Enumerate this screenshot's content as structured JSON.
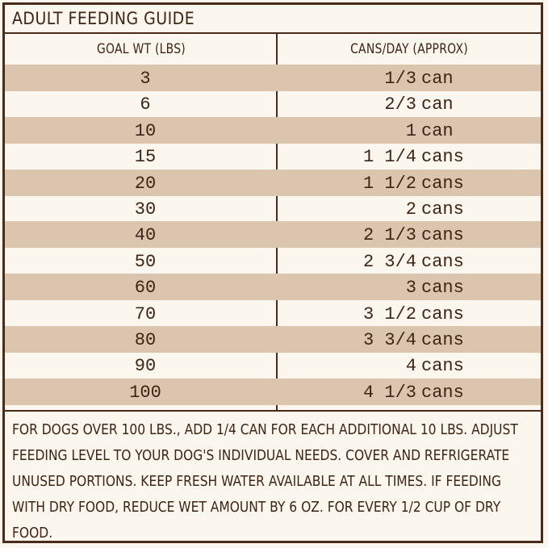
{
  "title": "ADULT FEEDING GUIDE",
  "table": {
    "headers": {
      "goal_weight": "GOAL WT (LBS)",
      "cans_per_day": "CANS/DAY (APPROX)"
    },
    "rows": [
      {
        "weight": "3",
        "amount": "1/3",
        "unit": "can"
      },
      {
        "weight": "6",
        "amount": "2/3",
        "unit": "can"
      },
      {
        "weight": "10",
        "amount": "1",
        "unit": "can"
      },
      {
        "weight": "15",
        "amount": "1 1/4",
        "unit": "cans"
      },
      {
        "weight": "20",
        "amount": "1 1/2",
        "unit": "cans"
      },
      {
        "weight": "30",
        "amount": "2",
        "unit": "cans"
      },
      {
        "weight": "40",
        "amount": "2 1/3",
        "unit": "cans"
      },
      {
        "weight": "50",
        "amount": "2 3/4",
        "unit": "cans"
      },
      {
        "weight": "60",
        "amount": "3",
        "unit": "cans"
      },
      {
        "weight": "70",
        "amount": "3 1/2",
        "unit": "cans"
      },
      {
        "weight": "80",
        "amount": "3 3/4",
        "unit": "cans"
      },
      {
        "weight": "90",
        "amount": "4",
        "unit": "cans"
      },
      {
        "weight": "100",
        "amount": "4 1/3",
        "unit": "cans"
      }
    ]
  },
  "notes": "FOR DOGS OVER 100 LBS., ADD 1/4 CAN FOR EACH ADDITIONAL 10 LBS. ADJUST FEEDING LEVEL TO YOUR DOG'S INDIVIDUAL NEEDS. COVER AND REFRIGERATE UNUSED PORTIONS. KEEP FRESH WATER AVAILABLE AT ALL TIMES. IF FEEDING WITH DRY FOOD, REDUCE WET AMOUNT BY 6 OZ. FOR EVERY 1/2 CUP OF DRY FOOD.",
  "colors": {
    "border": "#4a2b1a",
    "text": "#3e2415",
    "shade": "#dcc5ae",
    "background": "#fbf7ee"
  }
}
